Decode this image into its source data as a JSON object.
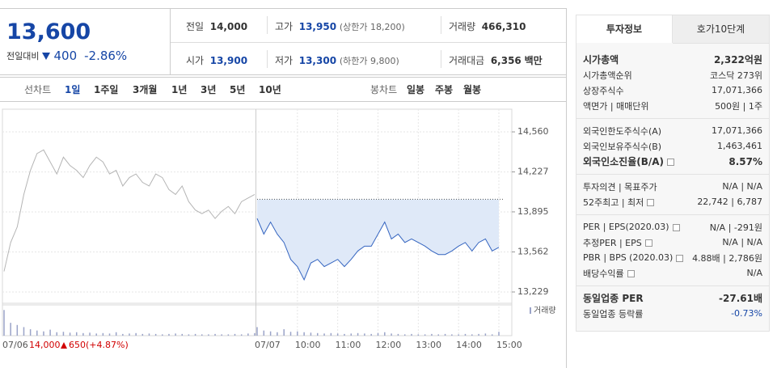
{
  "header": {
    "price": "13,600",
    "change_label": "전일대비",
    "change": "400",
    "change_pct": "-2.86%"
  },
  "summary": [
    {
      "label": "전일",
      "value": "14,000"
    },
    {
      "label": "고가",
      "value": "13,950",
      "note": "(상한가 18,200)"
    },
    {
      "label": "거래량",
      "value": "466,310"
    },
    {
      "label": "시가",
      "value": "13,900"
    },
    {
      "label": "저가",
      "value": "13,300",
      "note": "(하한가 9,800)"
    },
    {
      "label": "거래대금",
      "value": "6,356",
      "unit": "백만"
    }
  ],
  "chart_tabs": {
    "line_label": "선차트",
    "line": [
      "1일",
      "1주일",
      "3개월",
      "1년",
      "3년",
      "5년",
      "10년"
    ],
    "candle_label": "봉차트",
    "candle": [
      "일봉",
      "주봉",
      "월봉"
    ]
  },
  "info": {
    "tabs": [
      "투자정보",
      "호가10단계"
    ],
    "groups": [
      [
        {
          "label": "시가총액",
          "value": "2,322억원",
          "emphasis": true
        },
        {
          "label": "시가총액순위",
          "value": "코스닥 273위"
        },
        {
          "label": "상장주식수",
          "value": "17,071,366"
        },
        {
          "label": "액면가 | 매매단위",
          "value": "500원 | 1주"
        }
      ],
      [
        {
          "label": "외국인한도주식수(A)",
          "value": "17,071,366"
        },
        {
          "label": "외국인보유주식수(B)",
          "value": "1,463,461"
        },
        {
          "label": "외국인소진율(B/A)",
          "value": "8.57%",
          "emphasis": true,
          "help": true
        }
      ],
      [
        {
          "label": "투자의견 | 목표주가",
          "value": "N/A | N/A"
        },
        {
          "label": "52주최고 | 최저",
          "value": "22,742 | 6,787",
          "help": true
        }
      ],
      [
        {
          "label": "PER | EPS(2020.03)",
          "value": "N/A | -291원",
          "help": true
        },
        {
          "label": "추정PER | EPS",
          "value": "N/A | N/A",
          "help": true
        },
        {
          "label": "PBR | BPS (2020.03)",
          "value": "4.88배 | 2,786원",
          "help": true
        },
        {
          "label": "배당수익률",
          "value": "N/A",
          "help": true
        }
      ],
      [
        {
          "label": "동일업종 PER",
          "value": "-27.61배",
          "emphasis": true
        },
        {
          "label": "동일업종 등락률",
          "value": "-0.73%",
          "negative": true
        }
      ]
    ]
  },
  "chart_data": {
    "type": "line",
    "categories": [
      "07/06",
      null,
      null,
      null,
      null,
      null,
      null,
      null,
      null,
      null,
      null,
      null,
      null,
      null,
      null,
      null,
      null,
      null,
      null,
      null,
      null,
      null,
      null,
      null,
      null,
      null,
      null,
      null,
      null,
      null,
      null,
      null,
      null,
      null,
      null,
      null,
      null,
      null,
      null,
      "07/07",
      null,
      null,
      null,
      null,
      null,
      "10:00",
      null,
      null,
      null,
      null,
      null,
      "11:00",
      null,
      null,
      null,
      null,
      null,
      "12:00",
      null,
      null,
      null,
      null,
      null,
      "13:00",
      null,
      null,
      null,
      null,
      null,
      "14:00",
      null,
      null,
      null,
      null,
      null,
      "15:00"
    ],
    "ylim": [
      13155,
      14715
    ],
    "yticks": [
      {
        "value": 14560,
        "label": "14,560"
      },
      {
        "value": 14227,
        "label": "14,227"
      },
      {
        "value": 13895,
        "label": "13,895"
      },
      {
        "value": 13562,
        "label": "13,562"
      },
      {
        "value": 13229,
        "label": "13,229"
      }
    ],
    "grid": true,
    "prev_close": 14000,
    "y2lim": [
      0,
      70000
    ],
    "series": [
      {
        "color": "#b4b4b4",
        "values": [
          13400,
          13640,
          13770,
          14040,
          14240,
          14380,
          14410,
          14310,
          14210,
          14350,
          14280,
          14240,
          14180,
          14280,
          14350,
          14310,
          14210,
          14240,
          14110,
          14180,
          14210,
          14140,
          14110,
          14210,
          14180,
          14080,
          14040,
          14110,
          13980,
          13910,
          13880,
          13910,
          13840,
          13900,
          13940,
          13880,
          13980,
          14010,
          14040,
          null,
          null,
          null,
          null,
          null,
          null,
          null,
          null,
          null,
          null,
          null,
          null,
          null,
          null,
          null,
          null,
          null,
          null,
          null,
          null,
          null,
          null,
          null,
          null,
          null,
          null,
          null,
          null,
          null,
          null,
          null,
          null,
          null,
          null,
          null,
          null,
          null
        ]
      },
      {
        "color": "#3565c0",
        "fill": "#dfe9f8",
        "values": [
          null,
          null,
          null,
          null,
          null,
          null,
          null,
          null,
          null,
          null,
          null,
          null,
          null,
          null,
          null,
          null,
          null,
          null,
          null,
          null,
          null,
          null,
          null,
          null,
          null,
          null,
          null,
          null,
          null,
          null,
          null,
          null,
          null,
          null,
          null,
          null,
          null,
          null,
          null,
          13840,
          13710,
          13810,
          13710,
          13640,
          13500,
          13440,
          13330,
          13470,
          13500,
          13440,
          13470,
          13500,
          13440,
          13500,
          13570,
          13610,
          13610,
          13710,
          13810,
          13670,
          13710,
          13640,
          13670,
          13640,
          13610,
          13570,
          13540,
          13540,
          13570,
          13610,
          13640,
          13570,
          13640,
          13670,
          13570,
          13600
        ]
      },
      {
        "name": "거래량",
        "color": "#9aa3c8",
        "axis": "y2",
        "values": [
          60000,
          30000,
          25000,
          20000,
          15000,
          12000,
          10000,
          14000,
          8000,
          9000,
          7000,
          8000,
          6000,
          7000,
          5000,
          6000,
          5000,
          8000,
          4000,
          5000,
          6000,
          4000,
          5000,
          4000,
          3000,
          4000,
          5000,
          4000,
          3000,
          4000,
          3000,
          3000,
          4000,
          3000,
          3000,
          4000,
          3000,
          5000,
          6000,
          20000,
          12000,
          10000,
          8000,
          15000,
          9000,
          10000,
          8000,
          7000,
          6000,
          5000,
          6000,
          5000,
          4000,
          5000,
          6000,
          5000,
          4000,
          6000,
          8000,
          5000,
          4000,
          3000,
          4000,
          3000,
          3000,
          4000,
          3000,
          4000,
          3000,
          3000,
          4000,
          3000,
          4000,
          5000,
          3000,
          9000
        ]
      }
    ],
    "annotation": {
      "price": "14,000",
      "change": "650",
      "change_pct": "(+4.87%)"
    }
  }
}
